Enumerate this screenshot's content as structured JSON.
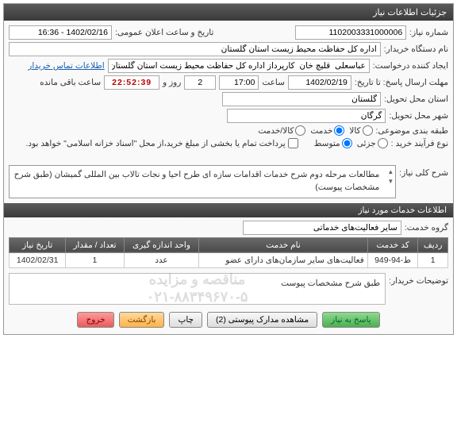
{
  "panel_title": "جزئیات اطلاعات نیاز",
  "labels": {
    "need_no": "شماره نیاز:",
    "announce_dt": "تاریخ و ساعت اعلان عمومی:",
    "buyer_org": "نام دستگاه خریدار:",
    "requester": "ایجاد کننده درخواست:",
    "contact_info": "اطلاعات تماس خریدار",
    "deadline": "مهلت ارسال پاسخ: تا تاریخ:",
    "time_word": "ساعت",
    "day_and": "روز و",
    "remaining": "ساعت باقی مانده",
    "delivery_province": "استان محل تحویل:",
    "delivery_city": "شهر محل تحویل:",
    "classification": "طبقه بندی موضوعی:",
    "goods": "کالا",
    "service": "خدمت",
    "goods_service": "کالا/خدمت",
    "process_type": "نوع فرآیند خرید :",
    "partial": "جزئی",
    "medium": "متوسط",
    "payment_note": "پرداخت تمام یا بخشی از مبلغ خرید،از محل \"اسناد خزانه اسلامی\" خواهد بود.",
    "need_desc": "شرح کلی نیاز:",
    "services_info": "اطلاعات خدمات مورد نیاز",
    "service_group": "گروه خدمت:",
    "buyer_notes": "توضیحات خریدار:"
  },
  "fields": {
    "need_no": "1102003331000006",
    "announce_dt": "1402/02/16 - 16:36",
    "buyer_org": "اداره کل حفاظت محیط زیست استان گلستان",
    "requester": "عباسعلی  قلیچ خان  کارپرداز اداره کل حفاظت محیط زیست استان گلستان",
    "deadline_date": "1402/02/19",
    "deadline_time": "17:00",
    "days_left": "2",
    "countdown": "22:52:39",
    "province": "گلستان",
    "city": "گرگان",
    "service_group": "سایر فعالیت‌های خدماتی",
    "need_desc": "مطالعات مرحله دوم شرح خدمات اقدامات سازه ای طرح احیا و نجات تالاب بین المللی گمیشان  (طبق شرح مشخصات پیوست)",
    "buyer_notes": "طبق شرح مشخصات پیوست"
  },
  "watermark_lines": [
    "مناقصه و مزایده",
    "۰۲۱-۸۸۳۴۹۶۷۰-۵"
  ],
  "table": {
    "headers": [
      "ردیف",
      "کد خدمت",
      "نام خدمت",
      "واحد اندازه گیری",
      "تعداد / مقدار",
      "تاریخ نیاز"
    ],
    "rows": [
      [
        "1",
        "ط-94-949",
        "فعالیت‌های سایر سازمان‌های دارای عضو",
        "عدد",
        "1",
        "1402/02/31"
      ]
    ]
  },
  "buttons": {
    "respond": "پاسخ به نیاز",
    "attachments": "مشاهده مدارک پیوستی (2)",
    "print": "چاپ",
    "back": "بازگشت",
    "exit": "خروج"
  },
  "colors": {
    "header_bg": "#4a4a4a",
    "link": "#1a5fb4",
    "countdown": "#b00000"
  }
}
